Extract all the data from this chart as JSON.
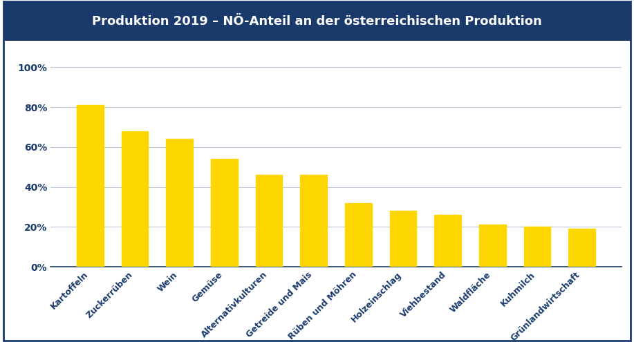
{
  "title": "Produktion 2019 – NÖ-Anteil an der österreichischen Produktion",
  "categories": [
    "Kartoffeln",
    "Zuckerrüben",
    "Wein",
    "Gemüse",
    "Alternativkulturen",
    "Getreide und Mais",
    "Rüben und Möhren",
    "Holzeinschlag",
    "Viehbestand",
    "Waldfläche",
    "Kuhmilch",
    "Grünlandwirtschaft"
  ],
  "values": [
    0.81,
    0.68,
    0.64,
    0.54,
    0.46,
    0.46,
    0.32,
    0.28,
    0.26,
    0.21,
    0.2,
    0.19
  ],
  "bar_color": "#FFD700",
  "title_bg_color": "#1a3a6b",
  "title_text_color": "#ffffff",
  "fig_background": "#ffffff",
  "grid_color": "#c0c8d8",
  "tick_label_color": "#1a3a6b",
  "ytick_labels": [
    "0%",
    "20%",
    "40%",
    "60%",
    "80%",
    "100%"
  ],
  "ytick_values": [
    0,
    0.2,
    0.4,
    0.6,
    0.8,
    1.0
  ],
  "ylim": [
    0,
    1.08
  ],
  "border_color": "#1a3a6b",
  "title_fontsize": 13,
  "tick_fontsize": 10,
  "xtick_fontsize": 9
}
